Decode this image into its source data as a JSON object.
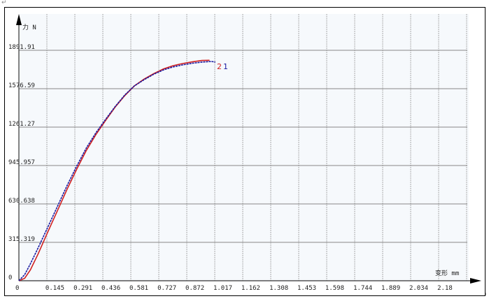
{
  "chart_data": {
    "type": "line",
    "title": "",
    "ylabel": "力 N",
    "xlabel": "变形 mm",
    "xlim": [
      0,
      2.325
    ],
    "ylim": [
      0,
      2050
    ],
    "grid": true,
    "x_ticks": [
      "0",
      "0.145",
      "0.291",
      "0.436",
      "0.581",
      "0.727",
      "0.872",
      "1.017",
      "1.162",
      "1.308",
      "1.453",
      "1.598",
      "1.744",
      "1.889",
      "2.034",
      "2.18"
    ],
    "x_tick_values": [
      0,
      0.145,
      0.291,
      0.436,
      0.581,
      0.727,
      0.872,
      1.017,
      1.162,
      1.308,
      1.453,
      1.598,
      1.744,
      1.889,
      2.034,
      2.18
    ],
    "y_ticks": [
      "0",
      "315.319",
      "630.638",
      "945.957",
      "1261.27",
      "1576.59",
      "1891.91"
    ],
    "y_tick_values": [
      0,
      315.319,
      630.638,
      945.957,
      1261.27,
      1576.59,
      1891.91
    ],
    "series": [
      {
        "name": "1",
        "color": "#1a1aa0",
        "x": [
          0,
          0.03,
          0.06,
          0.1,
          0.15,
          0.2,
          0.25,
          0.3,
          0.35,
          0.4,
          0.45,
          0.5,
          0.55,
          0.6,
          0.65,
          0.7,
          0.75,
          0.8,
          0.85,
          0.9,
          0.95,
          1.0,
          1.02
        ],
        "y": [
          0,
          50,
          140,
          270,
          440,
          610,
          780,
          940,
          1090,
          1215,
          1325,
          1430,
          1525,
          1600,
          1650,
          1695,
          1730,
          1755,
          1772,
          1785,
          1795,
          1800,
          1795
        ]
      },
      {
        "name": "2",
        "color": "#d02020",
        "x": [
          0,
          0.03,
          0.06,
          0.1,
          0.15,
          0.2,
          0.25,
          0.3,
          0.35,
          0.4,
          0.45,
          0.5,
          0.55,
          0.6,
          0.65,
          0.7,
          0.75,
          0.8,
          0.85,
          0.9,
          0.95,
          0.99
        ],
        "y": [
          0,
          20,
          90,
          220,
          400,
          575,
          750,
          915,
          1070,
          1200,
          1315,
          1425,
          1520,
          1600,
          1655,
          1700,
          1738,
          1765,
          1783,
          1797,
          1808,
          1810
        ]
      }
    ]
  },
  "para_marks": [
    "↵",
    "↵"
  ]
}
